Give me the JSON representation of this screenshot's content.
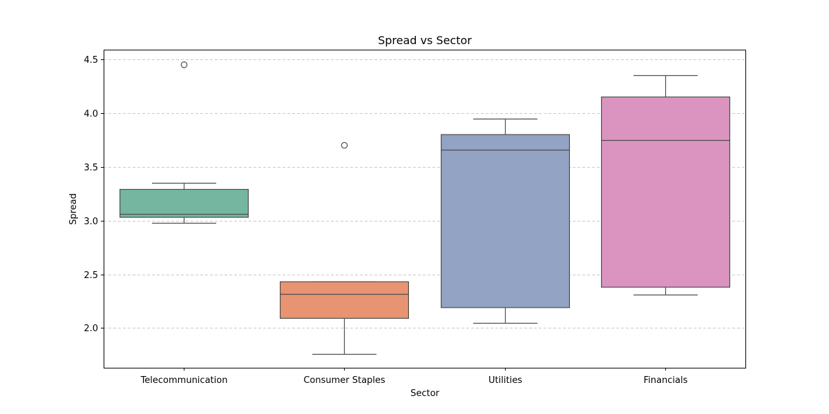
{
  "chart_data": {
    "type": "box",
    "title": "Spread vs Sector",
    "xlabel": "Sector",
    "ylabel": "Spread",
    "ylim": [
      1.63,
      4.59
    ],
    "yticks": [
      2.0,
      2.5,
      3.0,
      3.5,
      4.0,
      4.5
    ],
    "ytick_labels": [
      "2.0",
      "2.5",
      "3.0",
      "3.5",
      "4.0",
      "4.5"
    ],
    "grid": {
      "y": true,
      "x": false,
      "style": "dashed"
    },
    "categories": [
      "Telecommunication",
      "Consumer Staples",
      "Utilities",
      "Financials"
    ],
    "boxes": [
      {
        "category": "Telecommunication",
        "whisker_low": 2.98,
        "q1": 3.03,
        "median": 3.06,
        "q3": 3.29,
        "whisker_high": 3.35,
        "outliers": [
          4.45
        ],
        "color": "#74b6a0"
      },
      {
        "category": "Consumer Staples",
        "whisker_low": 1.76,
        "q1": 2.09,
        "median": 2.32,
        "q3": 2.43,
        "whisker_high": 2.43,
        "outliers": [
          3.7
        ],
        "color": "#e89472"
      },
      {
        "category": "Utilities",
        "whisker_low": 2.05,
        "q1": 2.19,
        "median": 3.66,
        "q3": 3.8,
        "whisker_high": 3.95,
        "outliers": [],
        "color": "#93a3c3"
      },
      {
        "category": "Financials",
        "whisker_low": 2.31,
        "q1": 2.38,
        "median": 3.75,
        "q3": 4.15,
        "whisker_high": 4.35,
        "outliers": [],
        "color": "#db94c0"
      }
    ],
    "colors": {
      "line": "#4d4d4d",
      "grid": "#c8c8c8",
      "axes": "#000000"
    }
  }
}
